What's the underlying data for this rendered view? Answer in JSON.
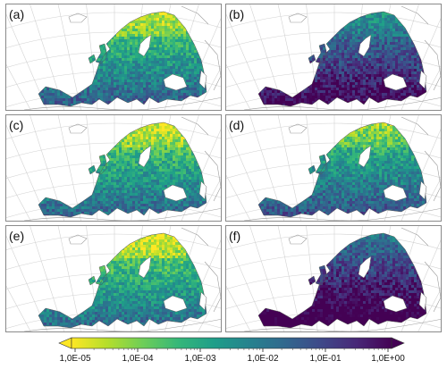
{
  "chart_data": {
    "type": "heatmap",
    "panels": [
      {
        "label": "(a)",
        "shade": 0.45
      },
      {
        "label": "(b)",
        "shade": 0.78
      },
      {
        "label": "(c)",
        "shade": 0.42
      },
      {
        "label": "(d)",
        "shade": 0.5
      },
      {
        "label": "(e)",
        "shade": 0.4
      },
      {
        "label": "(f)",
        "shade": 0.88
      }
    ],
    "colorbar": {
      "colormap": "viridis (reversed)",
      "scale": "log",
      "range": [
        1e-05,
        1
      ],
      "ticks": [
        "1,0E-05",
        "1,0E-04",
        "1,0E-03",
        "1,0E-02",
        "1,0E-01",
        "1,0E+00"
      ],
      "extend": "both"
    },
    "colors": {
      "low": "#fde725",
      "mid": "#21918c",
      "high": "#440154",
      "coastline": "#9a9a9a",
      "graticule": "#d2d2d2"
    }
  }
}
